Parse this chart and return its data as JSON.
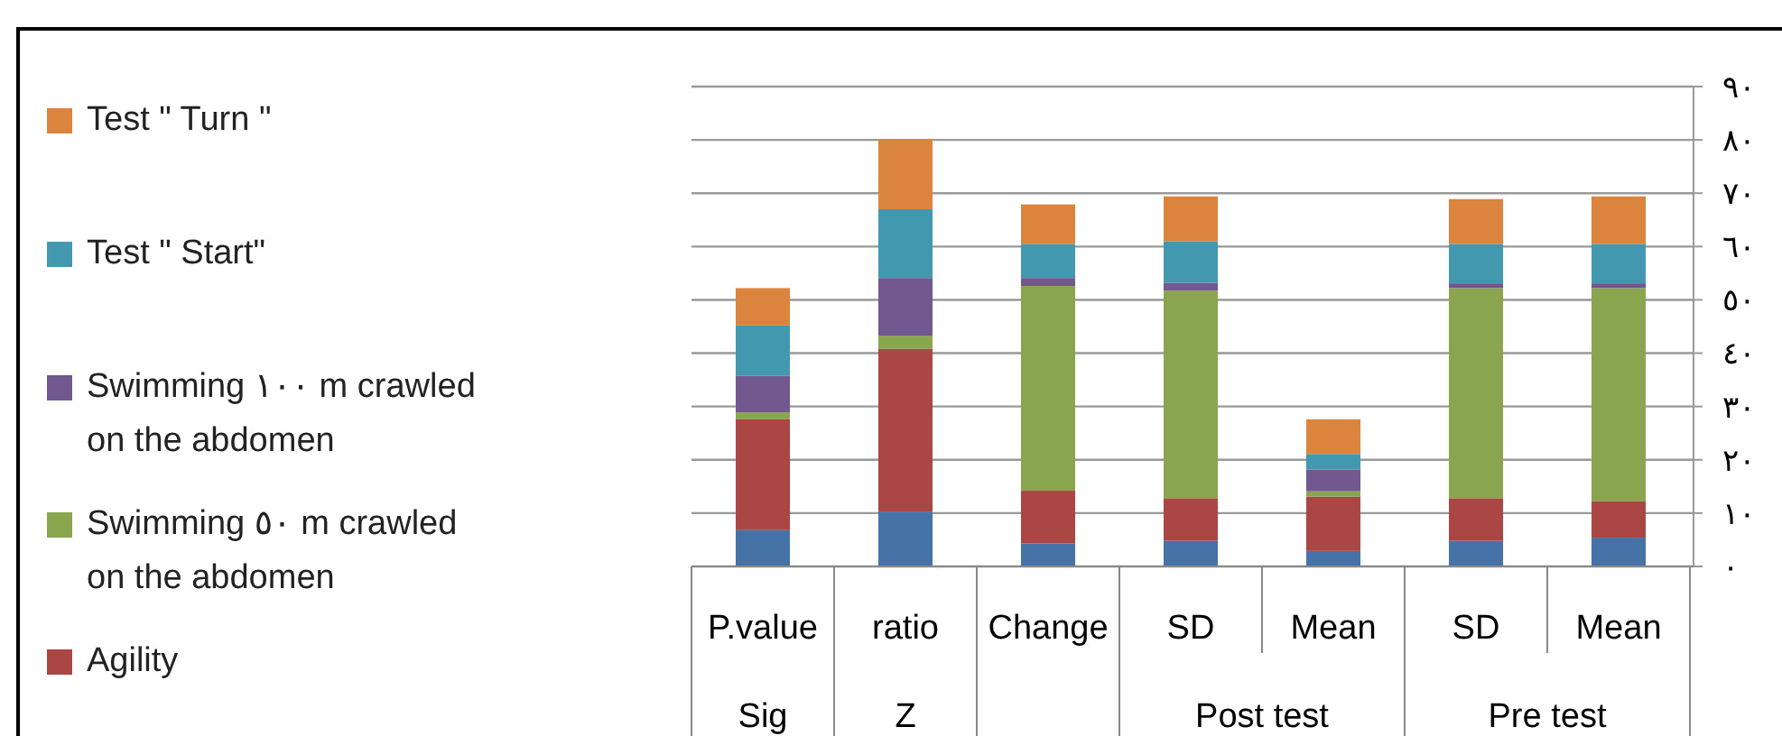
{
  "chart_data": {
    "type": "bar",
    "stacked": true,
    "legend": "left",
    "grid": "y",
    "categories": [
      "P.value",
      "ratio",
      "Change",
      "SD",
      "Mean",
      "SD",
      "Mean"
    ],
    "annotations": [
      "Sig",
      "Z",
      "Post test",
      "Pre test"
    ],
    "ylim": [
      0,
      90
    ],
    "yticks": [
      {
        "value": 0,
        "label": "٠"
      },
      {
        "value": 10,
        "label": "١٠"
      },
      {
        "value": 20,
        "label": "٢٠"
      },
      {
        "value": 30,
        "label": "٣٠"
      },
      {
        "value": 40,
        "label": "٤٠"
      },
      {
        "value": 50,
        "label": "٥٠"
      },
      {
        "value": 60,
        "label": "٦٠"
      },
      {
        "value": 70,
        "label": "٧٠"
      },
      {
        "value": 80,
        "label": "٨٠"
      },
      {
        "value": 90,
        "label": "٩٠"
      }
    ],
    "series": [
      {
        "color": "#4572a7",
        "values": [
          6.8,
          10.3,
          4.3,
          4.8,
          2.9,
          4.8,
          5.4
        ]
      },
      {
        "name": "Agility",
        "color": "#aa4643",
        "values": [
          20.8,
          30.5,
          9.9,
          8.0,
          10.2,
          8.0,
          6.8
        ]
      },
      {
        "name": "Swimming ٥٠ m crawled on the abdomen",
        "color": "#89a54e",
        "values": [
          1.3,
          2.5,
          38.4,
          38.9,
          1.0,
          39.4,
          40.0
        ]
      },
      {
        "name": "Swimming ١٠٠ m crawled on the abdomen",
        "color": "#71588f",
        "values": [
          6.9,
          10.8,
          1.5,
          1.5,
          4.1,
          0.9,
          0.9
        ]
      },
      {
        "name": "Test \" Start\"",
        "color": "#4198af",
        "values": [
          9.4,
          12.9,
          6.4,
          7.8,
          2.9,
          7.4,
          7.4
        ]
      },
      {
        "name": "Test \" Turn \"",
        "color": "#db843d",
        "values": [
          7.0,
          13.2,
          7.4,
          8.4,
          6.5,
          8.4,
          8.9
        ]
      }
    ]
  }
}
